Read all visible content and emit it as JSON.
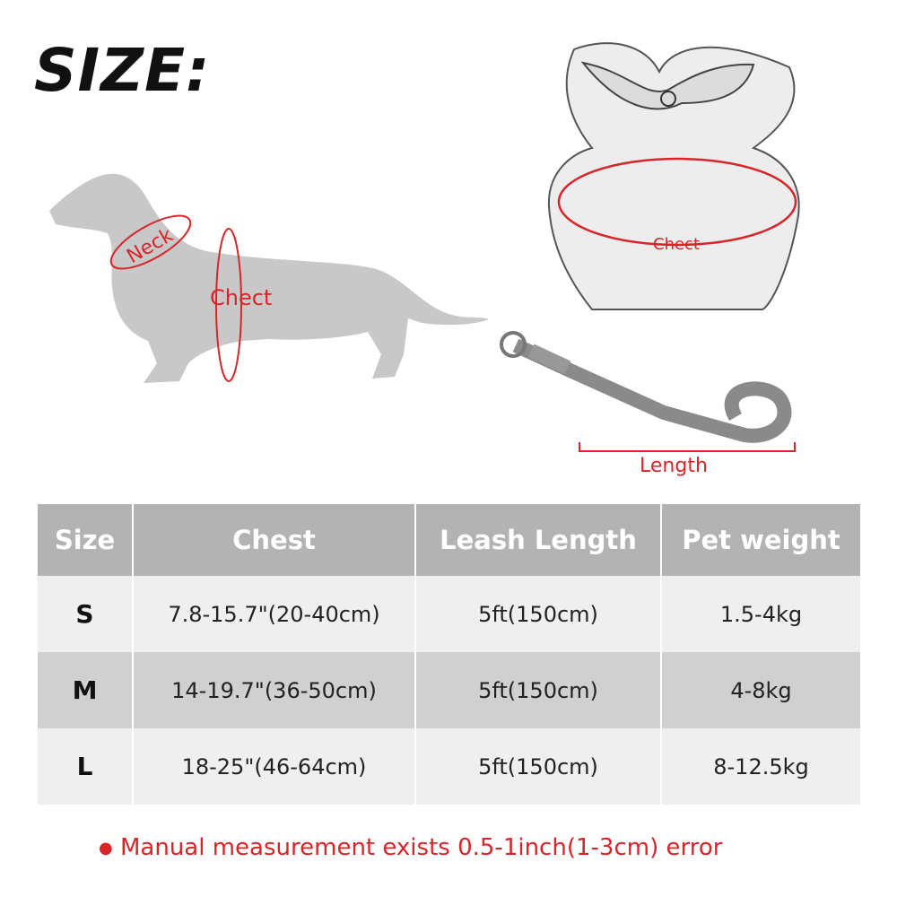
{
  "title": "SIZE:",
  "labels": {
    "neck": "Neck",
    "chest_dog": "Chect",
    "chest_harness": "Chect",
    "length": "Length"
  },
  "colors": {
    "accent": "#d9252a",
    "header_bg": "#b3b3b3",
    "row_light": "#efefef",
    "row_dark": "#d0d0d0",
    "silhouette": "#c8c8c8"
  },
  "table": {
    "headers": [
      "Size",
      "Chest",
      "Leash Length",
      "Pet weight"
    ],
    "rows": [
      {
        "size": "S",
        "chest": "7.8-15.7\"(20-40cm)",
        "leash": "5ft(150cm)",
        "weight": "1.5-4kg"
      },
      {
        "size": "M",
        "chest": "14-19.7\"(36-50cm)",
        "leash": "5ft(150cm)",
        "weight": "4-8kg"
      },
      {
        "size": "L",
        "chest": "18-25\"(46-64cm)",
        "leash": "5ft(150cm)",
        "weight": "8-12.5kg"
      }
    ]
  },
  "note": {
    "bullet": "●",
    "text": "Manual measurement exists 0.5-1inch(1-3cm) error"
  }
}
